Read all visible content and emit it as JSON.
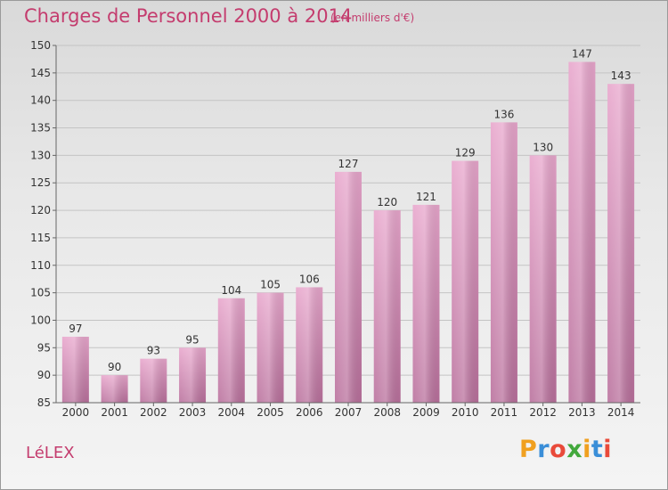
{
  "title": "Charges de Personnel 2000 à 2014",
  "subtitle": "(en milliers d'€)",
  "city": "LéLEX",
  "logo": [
    "P",
    "r",
    "o",
    "x",
    "i",
    "t",
    "i"
  ],
  "chart_data": {
    "type": "bar",
    "categories": [
      "2000",
      "2001",
      "2002",
      "2003",
      "2004",
      "2005",
      "2006",
      "2007",
      "2008",
      "2009",
      "2010",
      "2011",
      "2012",
      "2013",
      "2014"
    ],
    "values": [
      97,
      90,
      93,
      95,
      104,
      105,
      106,
      127,
      120,
      121,
      129,
      136,
      130,
      147,
      143
    ],
    "ylim": [
      85,
      150
    ],
    "yticks": [
      85,
      90,
      95,
      100,
      105,
      110,
      115,
      120,
      125,
      130,
      135,
      140,
      145,
      150
    ],
    "grid": true,
    "bar_color": "#d985b5"
  }
}
